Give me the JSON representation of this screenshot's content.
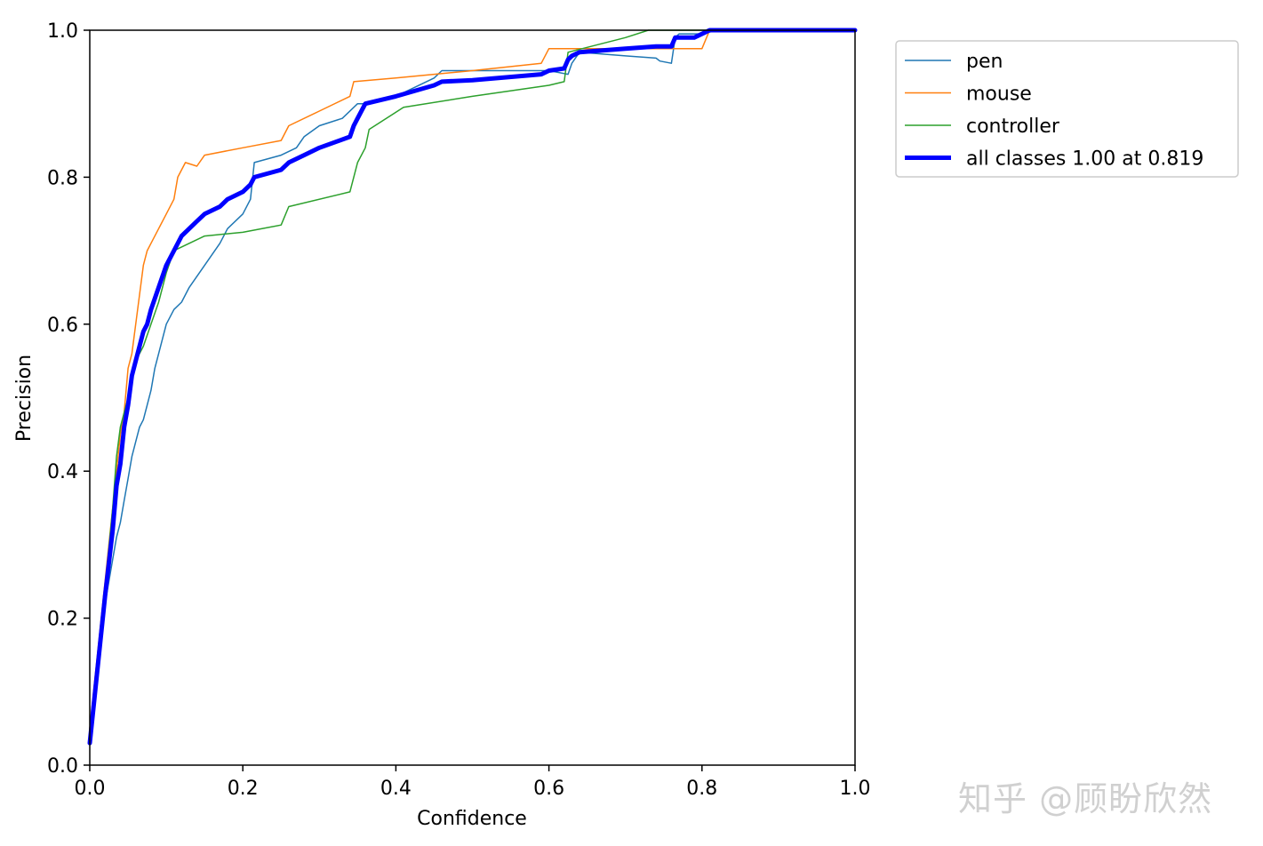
{
  "chart_data": {
    "type": "line",
    "title": "",
    "xlabel": "Confidence",
    "ylabel": "Precision",
    "xlim": [
      0,
      1
    ],
    "ylim": [
      0,
      1
    ],
    "xticks": [
      "0.0",
      "0.2",
      "0.4",
      "0.6",
      "0.8",
      "1.0"
    ],
    "yticks": [
      "0.0",
      "0.2",
      "0.4",
      "0.6",
      "0.8",
      "1.0"
    ],
    "grid": false,
    "legend_position": "outside-top-right",
    "series": [
      {
        "name": "pen",
        "color": "#1f77b4",
        "width": 1.5,
        "x": [
          0.0,
          0.01,
          0.02,
          0.03,
          0.035,
          0.04,
          0.045,
          0.05,
          0.055,
          0.06,
          0.065,
          0.07,
          0.075,
          0.08,
          0.085,
          0.09,
          0.1,
          0.11,
          0.12,
          0.13,
          0.15,
          0.17,
          0.18,
          0.2,
          0.21,
          0.215,
          0.25,
          0.27,
          0.28,
          0.3,
          0.33,
          0.35,
          0.36,
          0.4,
          0.45,
          0.46,
          0.5,
          0.6,
          0.625,
          0.63,
          0.64,
          0.7,
          0.74,
          0.745,
          0.76,
          0.765,
          0.77,
          0.8,
          0.82,
          1.0
        ],
        "y": [
          0.03,
          0.12,
          0.22,
          0.28,
          0.31,
          0.33,
          0.36,
          0.39,
          0.42,
          0.44,
          0.46,
          0.47,
          0.49,
          0.51,
          0.54,
          0.56,
          0.6,
          0.62,
          0.63,
          0.65,
          0.68,
          0.71,
          0.73,
          0.75,
          0.77,
          0.82,
          0.83,
          0.84,
          0.855,
          0.87,
          0.88,
          0.9,
          0.9,
          0.91,
          0.935,
          0.945,
          0.945,
          0.945,
          0.94,
          0.955,
          0.97,
          0.965,
          0.962,
          0.958,
          0.955,
          0.99,
          0.995,
          0.995,
          1.0,
          1.0
        ]
      },
      {
        "name": "mouse",
        "color": "#ff7f0e",
        "width": 1.5,
        "x": [
          0.0,
          0.01,
          0.02,
          0.03,
          0.04,
          0.045,
          0.05,
          0.055,
          0.06,
          0.065,
          0.07,
          0.075,
          0.08,
          0.09,
          0.1,
          0.11,
          0.115,
          0.125,
          0.14,
          0.15,
          0.2,
          0.25,
          0.26,
          0.3,
          0.34,
          0.345,
          0.4,
          0.45,
          0.5,
          0.59,
          0.6,
          0.7,
          0.8,
          0.81,
          1.0
        ],
        "y": [
          0.05,
          0.15,
          0.25,
          0.35,
          0.45,
          0.48,
          0.54,
          0.56,
          0.6,
          0.64,
          0.68,
          0.7,
          0.71,
          0.73,
          0.75,
          0.77,
          0.8,
          0.82,
          0.815,
          0.83,
          0.84,
          0.85,
          0.87,
          0.89,
          0.91,
          0.93,
          0.935,
          0.94,
          0.945,
          0.955,
          0.975,
          0.975,
          0.975,
          1.0,
          1.0
        ]
      },
      {
        "name": "controller",
        "color": "#2ca02c",
        "width": 1.5,
        "x": [
          0.0,
          0.01,
          0.02,
          0.03,
          0.035,
          0.04,
          0.05,
          0.06,
          0.07,
          0.08,
          0.09,
          0.1,
          0.11,
          0.15,
          0.2,
          0.25,
          0.26,
          0.34,
          0.345,
          0.35,
          0.36,
          0.365,
          0.41,
          0.5,
          0.6,
          0.62,
          0.625,
          0.7,
          0.73,
          1.0
        ],
        "y": [
          0.04,
          0.14,
          0.24,
          0.35,
          0.42,
          0.46,
          0.5,
          0.55,
          0.57,
          0.6,
          0.63,
          0.67,
          0.7,
          0.72,
          0.725,
          0.735,
          0.76,
          0.78,
          0.8,
          0.82,
          0.84,
          0.865,
          0.895,
          0.91,
          0.925,
          0.93,
          0.97,
          0.99,
          1.0,
          1.0
        ]
      },
      {
        "name": "all classes 1.00 at 0.819",
        "color": "#0000ff",
        "width": 5,
        "x": [
          0.0,
          0.01,
          0.02,
          0.03,
          0.035,
          0.04,
          0.045,
          0.05,
          0.055,
          0.06,
          0.065,
          0.07,
          0.075,
          0.08,
          0.09,
          0.1,
          0.11,
          0.12,
          0.14,
          0.15,
          0.17,
          0.18,
          0.2,
          0.21,
          0.215,
          0.25,
          0.26,
          0.28,
          0.3,
          0.34,
          0.345,
          0.35,
          0.36,
          0.4,
          0.45,
          0.46,
          0.5,
          0.59,
          0.6,
          0.62,
          0.625,
          0.63,
          0.64,
          0.7,
          0.74,
          0.76,
          0.765,
          0.79,
          0.8,
          0.81,
          1.0
        ],
        "y": [
          0.03,
          0.13,
          0.23,
          0.32,
          0.38,
          0.41,
          0.46,
          0.49,
          0.53,
          0.55,
          0.57,
          0.59,
          0.6,
          0.62,
          0.65,
          0.68,
          0.7,
          0.72,
          0.74,
          0.75,
          0.76,
          0.77,
          0.78,
          0.79,
          0.8,
          0.81,
          0.82,
          0.83,
          0.84,
          0.855,
          0.87,
          0.88,
          0.9,
          0.91,
          0.925,
          0.93,
          0.932,
          0.94,
          0.945,
          0.948,
          0.96,
          0.965,
          0.97,
          0.975,
          0.978,
          0.978,
          0.99,
          0.99,
          0.995,
          1.0,
          1.0
        ]
      }
    ]
  },
  "watermark": "知乎 @顾盼欣然"
}
